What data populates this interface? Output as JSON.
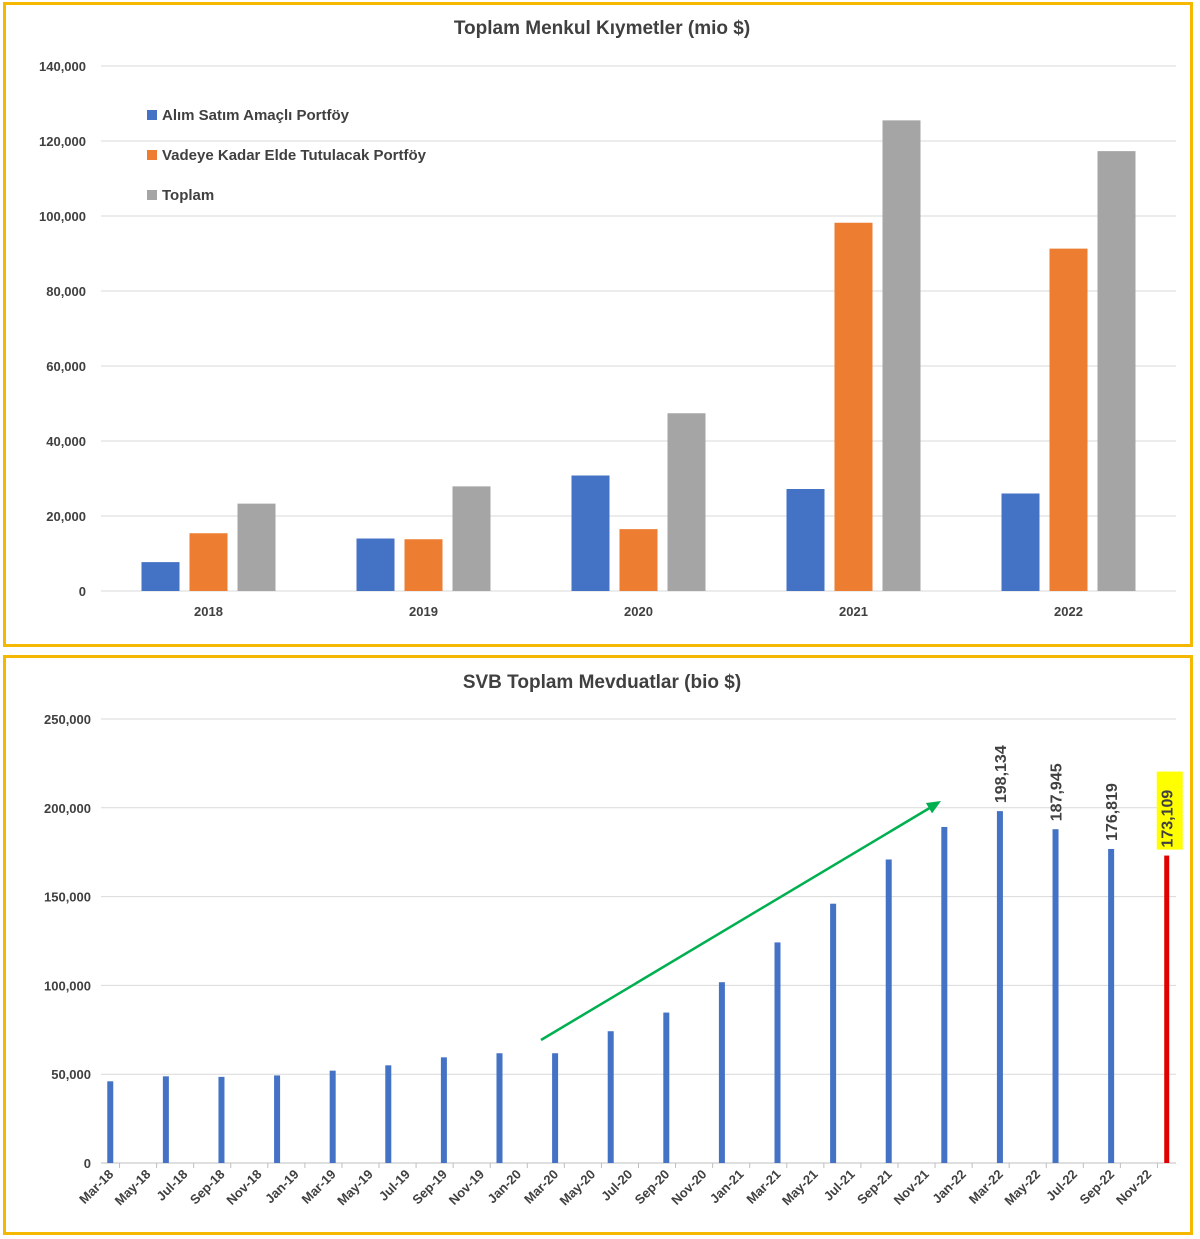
{
  "chart_data": [
    {
      "type": "bar",
      "title": "Toplam Menkul Kıymetler (mio $)",
      "categories": [
        "2018",
        "2019",
        "2020",
        "2021",
        "2022"
      ],
      "series": [
        {
          "name": "Alım Satım Amaçlı Portföy",
          "color": "#4472c4",
          "values": [
            7700,
            14000,
            30800,
            27200,
            26000
          ]
        },
        {
          "name": "Vadeye Kadar Elde Tutulacak Portföy",
          "color": "#ed7d31",
          "values": [
            15400,
            13800,
            16500,
            98200,
            91300
          ]
        },
        {
          "name": "Toplam",
          "color": "#a5a5a5",
          "values": [
            23300,
            27900,
            47400,
            125500,
            117300
          ]
        }
      ],
      "ylim": [
        0,
        140000
      ],
      "yticks": [
        "0",
        "20,000",
        "40,000",
        "60,000",
        "80,000",
        "100,000",
        "120,000",
        "140,000"
      ],
      "legend_position": "top-left",
      "grid": true
    },
    {
      "type": "bar",
      "title": "SVB Toplam Mevduatlar (bio $)",
      "x": [
        "Mar-18",
        "Jun-18",
        "Sep-18",
        "Dec-18",
        "Mar-19",
        "Jun-19",
        "Sep-19",
        "Dec-19",
        "Mar-20",
        "Jun-20",
        "Sep-20",
        "Dec-20",
        "Mar-21",
        "Jun-21",
        "Sep-21",
        "Dec-21",
        "Mar-22",
        "Jun-22",
        "Sep-22",
        "Dec-22"
      ],
      "values": [
        46000,
        48800,
        48500,
        49300,
        52000,
        55000,
        59500,
        61800,
        61800,
        74200,
        84700,
        101800,
        124200,
        146000,
        170900,
        189200,
        198134,
        187945,
        176819,
        173109
      ],
      "data_labels": [
        {
          "index": 16,
          "text": "198,134"
        },
        {
          "index": 17,
          "text": "187,945"
        },
        {
          "index": 18,
          "text": "176,819"
        },
        {
          "index": 19,
          "text": "173,109",
          "highlight": "#ffff00"
        }
      ],
      "xticks": [
        "Mar-18",
        "May-18",
        "Jul-18",
        "Sep-18",
        "Nov-18",
        "Jan-19",
        "Mar-19",
        "May-19",
        "Jul-19",
        "Sep-19",
        "Nov-19",
        "Jan-20",
        "Mar-20",
        "May-20",
        "Jul-20",
        "Sep-20",
        "Nov-20",
        "Jan-21",
        "Mar-21",
        "May-21",
        "Jul-21",
        "Sep-21",
        "Nov-21",
        "Jan-22",
        "Mar-22",
        "May-22",
        "Jul-22",
        "Sep-22",
        "Nov-22"
      ],
      "ylim": [
        0,
        250000
      ],
      "yticks": [
        "0",
        "50,000",
        "100,000",
        "150,000",
        "200,000",
        "250,000"
      ],
      "bar_color": "#4472c4",
      "last_bar_color": "#e00000",
      "trend_arrow_color": "#00b050",
      "grid": true
    }
  ]
}
